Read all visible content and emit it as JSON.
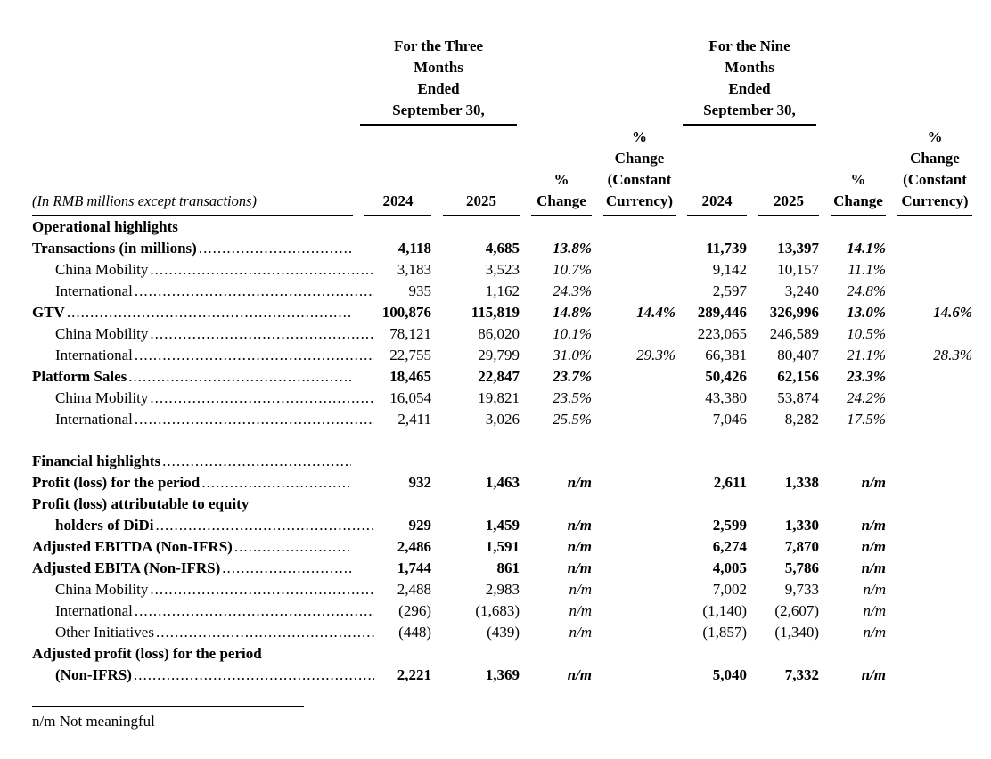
{
  "table": {
    "group_headers": [
      {
        "lines": [
          "For the Three",
          "Months",
          "Ended",
          "September 30,"
        ]
      },
      {
        "lines": [
          "For the Nine",
          "Months",
          "Ended",
          "September 30,"
        ]
      }
    ],
    "unit_label": "(In RMB millions except transactions)",
    "col_headers": [
      {
        "lines": [
          "2024"
        ]
      },
      {
        "lines": [
          "2025"
        ]
      },
      {
        "lines": [
          "%",
          "Change"
        ]
      },
      {
        "lines": [
          "%",
          "Change",
          "(Constant",
          "Currency)"
        ]
      },
      {
        "lines": [
          "2024"
        ]
      },
      {
        "lines": [
          "2025"
        ]
      },
      {
        "lines": [
          "%",
          "Change"
        ]
      },
      {
        "lines": [
          "%",
          "Change",
          "(Constant",
          "Currency)"
        ]
      }
    ],
    "rows": [
      {
        "label": "Operational highlights",
        "bold": true,
        "indent": 0,
        "dots": false,
        "values": [
          "",
          "",
          "",
          "",
          "",
          "",
          "",
          ""
        ]
      },
      {
        "label": "Transactions (in millions)",
        "bold": true,
        "indent": 0,
        "dots": true,
        "values": [
          "4,118",
          "4,685",
          "13.8%",
          "",
          "11,739",
          "13,397",
          "14.1%",
          ""
        ]
      },
      {
        "label": "China Mobility",
        "bold": false,
        "indent": 1,
        "dots": true,
        "values": [
          "3,183",
          "3,523",
          "10.7%",
          "",
          "9,142",
          "10,157",
          "11.1%",
          ""
        ]
      },
      {
        "label": "International",
        "bold": false,
        "indent": 1,
        "dots": true,
        "values": [
          "935",
          "1,162",
          "24.3%",
          "",
          "2,597",
          "3,240",
          "24.8%",
          ""
        ]
      },
      {
        "label": "GTV",
        "bold": true,
        "indent": 0,
        "dots": true,
        "values": [
          "100,876",
          "115,819",
          "14.8%",
          "14.4%",
          "289,446",
          "326,996",
          "13.0%",
          "14.6%"
        ]
      },
      {
        "label": "China Mobility",
        "bold": false,
        "indent": 1,
        "dots": true,
        "values": [
          "78,121",
          "86,020",
          "10.1%",
          "",
          "223,065",
          "246,589",
          "10.5%",
          ""
        ]
      },
      {
        "label": "International",
        "bold": false,
        "indent": 1,
        "dots": true,
        "values": [
          "22,755",
          "29,799",
          "31.0%",
          "29.3%",
          "66,381",
          "80,407",
          "21.1%",
          "28.3%"
        ]
      },
      {
        "label": "Platform Sales",
        "bold": true,
        "indent": 0,
        "dots": true,
        "values": [
          "18,465",
          "22,847",
          "23.7%",
          "",
          "50,426",
          "62,156",
          "23.3%",
          ""
        ]
      },
      {
        "label": "China Mobility",
        "bold": false,
        "indent": 1,
        "dots": true,
        "values": [
          "16,054",
          "19,821",
          "23.5%",
          "",
          "43,380",
          "53,874",
          "24.2%",
          ""
        ]
      },
      {
        "label": "International",
        "bold": false,
        "indent": 1,
        "dots": true,
        "values": [
          "2,411",
          "3,026",
          "25.5%",
          "",
          "7,046",
          "8,282",
          "17.5%",
          ""
        ]
      },
      {
        "spacer": true
      },
      {
        "label": "Financial highlights",
        "bold": true,
        "indent": 0,
        "dots": true,
        "values": [
          "",
          "",
          "",
          "",
          "",
          "",
          "",
          ""
        ]
      },
      {
        "label": "Profit (loss) for the period",
        "bold": true,
        "indent": 0,
        "dots": true,
        "values": [
          "932",
          "1,463",
          "n/m",
          "",
          "2,611",
          "1,338",
          "n/m",
          ""
        ]
      },
      {
        "label": "Profit (loss) attributable to equity",
        "bold": true,
        "indent": 0,
        "dots": false,
        "values": [
          "",
          "",
          "",
          "",
          "",
          "",
          "",
          ""
        ]
      },
      {
        "label": "holders of DiDi",
        "bold": true,
        "indent": 1,
        "dots": true,
        "values": [
          "929",
          "1,459",
          "n/m",
          "",
          "2,599",
          "1,330",
          "n/m",
          ""
        ]
      },
      {
        "label": "Adjusted EBITDA (Non-IFRS)",
        "bold": true,
        "indent": 0,
        "dots": true,
        "values": [
          "2,486",
          "1,591",
          "n/m",
          "",
          "6,274",
          "7,870",
          "n/m",
          ""
        ]
      },
      {
        "label": "Adjusted EBITA (Non-IFRS)",
        "bold": true,
        "indent": 0,
        "dots": true,
        "values": [
          "1,744",
          "861",
          "n/m",
          "",
          "4,005",
          "5,786",
          "n/m",
          ""
        ]
      },
      {
        "label": "China Mobility",
        "bold": false,
        "indent": 1,
        "dots": true,
        "values": [
          "2,488",
          "2,983",
          "n/m",
          "",
          "7,002",
          "9,733",
          "n/m",
          ""
        ]
      },
      {
        "label": "International",
        "bold": false,
        "indent": 1,
        "dots": true,
        "values": [
          "(296)",
          "(1,683)",
          "n/m",
          "",
          "(1,140)",
          "(2,607)",
          "n/m",
          ""
        ]
      },
      {
        "label": "Other Initiatives",
        "bold": false,
        "indent": 1,
        "dots": true,
        "values": [
          "(448)",
          "(439)",
          "n/m",
          "",
          "(1,857)",
          "(1,340)",
          "n/m",
          ""
        ]
      },
      {
        "label": "Adjusted profit (loss) for the period",
        "bold": true,
        "indent": 0,
        "dots": false,
        "values": [
          "",
          "",
          "",
          "",
          "",
          "",
          "",
          ""
        ]
      },
      {
        "label": "(Non-IFRS)",
        "bold": true,
        "indent": 1,
        "dots": true,
        "values": [
          "2,221",
          "1,369",
          "n/m",
          "",
          "5,040",
          "7,332",
          "n/m",
          ""
        ]
      }
    ],
    "footnote": "n/m Not meaningful"
  }
}
